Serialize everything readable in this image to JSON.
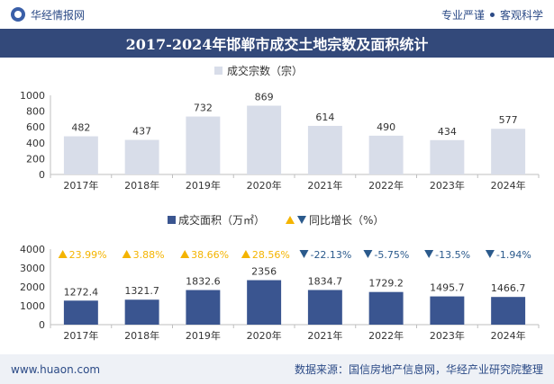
{
  "header": {
    "brand": "华经情报网",
    "slogan_left": "专业严谨",
    "slogan_right": "客观科学"
  },
  "title": "2017-2024年邯郸市成交土地宗数及面积统计",
  "footer": {
    "website": "www.huaon.com",
    "source": "数据来源：国信房地产信息网，华经产业研究院整理"
  },
  "colors": {
    "bar_light": "#d8dde9",
    "bar_dark": "#3a5590",
    "title_bg": "#33497a",
    "up": "#f4b400",
    "down": "#2b5a8c"
  },
  "chart_data": [
    {
      "type": "bar",
      "legend": "成交宗数（宗）",
      "categories": [
        "2017年",
        "2018年",
        "2019年",
        "2020年",
        "2021年",
        "2022年",
        "2023年",
        "2024年"
      ],
      "values": [
        482,
        437,
        732,
        869,
        614,
        490,
        434,
        577
      ],
      "data_labels": [
        "482",
        "437",
        "732",
        "869",
        "614",
        "490",
        "434",
        "577"
      ],
      "ylim": [
        0,
        1000
      ],
      "yticks": [
        0,
        200,
        400,
        600,
        800,
        1000
      ]
    },
    {
      "type": "bar",
      "legend": "成交面积（万㎡）",
      "growth_legend": "同比增长（%）",
      "categories": [
        "2017年",
        "2018年",
        "2019年",
        "2020年",
        "2021年",
        "2022年",
        "2023年",
        "2024年"
      ],
      "values": [
        1272.4,
        1321.7,
        1832.6,
        2356,
        1834.7,
        1729.2,
        1495.7,
        1466.7
      ],
      "data_labels": [
        "1272.4",
        "1321.7",
        "1832.6",
        "2356",
        "1834.7",
        "1729.2",
        "1495.7",
        "1466.7"
      ],
      "growth_labels": [
        "23.99%",
        "3.88%",
        "38.66%",
        "28.56%",
        "-22.13%",
        "-5.75%",
        "-13.5%",
        "-1.94%"
      ],
      "growth_values": [
        23.99,
        3.88,
        38.66,
        28.56,
        -22.13,
        -5.75,
        -13.5,
        -1.94
      ],
      "ylim": [
        0,
        4000
      ],
      "yticks": [
        0,
        1000,
        2000,
        3000,
        4000
      ]
    }
  ]
}
